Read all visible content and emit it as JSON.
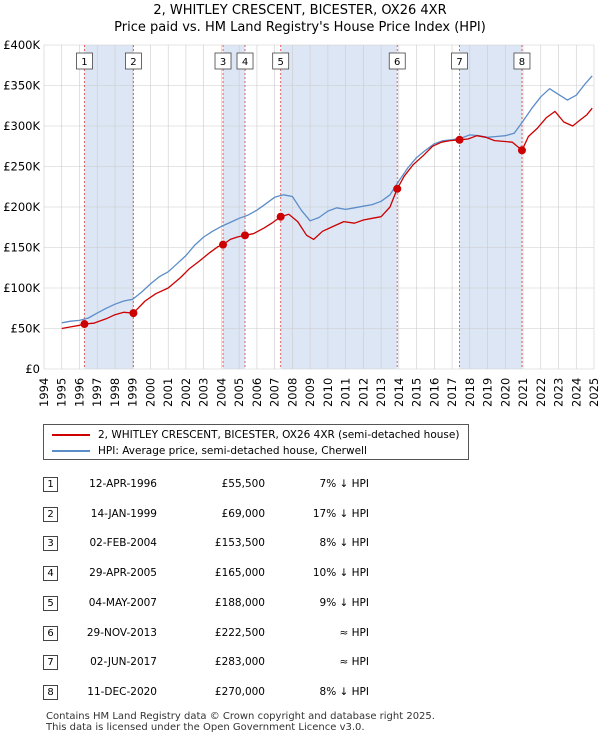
{
  "title_line1": "2, WHITLEY CRESCENT, BICESTER, OX26 4XR",
  "title_line2": "Price paid vs. HM Land Registry's House Price Index (HPI)",
  "chart_data": {
    "type": "line",
    "title": "2, WHITLEY CRESCENT, BICESTER, OX26 4XR — Price paid vs. HM Land Registry's House Price Index (HPI)",
    "xlabel": "",
    "ylabel": "",
    "xlim": [
      1994,
      2025
    ],
    "ylim": [
      0,
      400000
    ],
    "x_ticks": [
      1994,
      1995,
      1996,
      1997,
      1998,
      1999,
      2000,
      2001,
      2002,
      2003,
      2004,
      2005,
      2006,
      2007,
      2008,
      2009,
      2010,
      2011,
      2012,
      2013,
      2014,
      2015,
      2016,
      2017,
      2018,
      2019,
      2020,
      2021,
      2022,
      2023,
      2024,
      2025
    ],
    "y_ticks": [
      0,
      50000,
      100000,
      150000,
      200000,
      250000,
      300000,
      350000,
      400000
    ],
    "y_tick_labels": [
      "£0",
      "£50K",
      "£100K",
      "£150K",
      "£200K",
      "£250K",
      "£300K",
      "£350K",
      "£400K"
    ],
    "grid": true,
    "colors": {
      "property": "#cc0000",
      "hpi": "#5b8dc9",
      "shade": "#dde6f5",
      "vline": "#e06060",
      "grid": "#cccccc"
    },
    "series": [
      {
        "name": "2, WHITLEY CRESCENT, BICESTER, OX26 4XR (semi-detached house)",
        "x": [
          1995.0,
          1995.5,
          1996.0,
          1996.28,
          1996.8,
          1997.5,
          1998.0,
          1998.5,
          1999.04,
          1999.7,
          2000.3,
          2001.0,
          2001.7,
          2002.2,
          2002.8,
          2003.3,
          2003.8,
          2004.09,
          2004.5,
          2004.9,
          2005.33,
          2005.8,
          2006.4,
          2006.9,
          2007.34,
          2007.8,
          2008.3,
          2008.8,
          2009.2,
          2009.7,
          2010.3,
          2010.9,
          2011.5,
          2012.0,
          2012.5,
          2013.0,
          2013.5,
          2013.91,
          2014.3,
          2014.8,
          2015.4,
          2015.9,
          2016.4,
          2016.9,
          2017.42,
          2017.9,
          2018.4,
          2018.9,
          2019.4,
          2019.9,
          2020.4,
          2020.94,
          2021.3,
          2021.8,
          2022.3,
          2022.8,
          2023.3,
          2023.8,
          2024.2,
          2024.6,
          2024.9
        ],
        "values": [
          50000,
          52000,
          54000,
          55500,
          56500,
          62000,
          67000,
          70000,
          69000,
          84000,
          93000,
          100000,
          113000,
          124000,
          134000,
          143000,
          151000,
          153500,
          160000,
          163000,
          165000,
          167000,
          174000,
          181000,
          188000,
          191000,
          182000,
          165000,
          160000,
          170000,
          176000,
          182000,
          180000,
          184000,
          186000,
          188000,
          200000,
          222500,
          238000,
          252000,
          264000,
          275000,
          280000,
          282000,
          283000,
          284000,
          288000,
          286000,
          282000,
          281000,
          280000,
          270000,
          287000,
          297000,
          310000,
          318000,
          305000,
          300000,
          307000,
          314000,
          322000
        ]
      },
      {
        "name": "HPI: Average price, semi-detached house, Cherwell",
        "x": [
          1995.0,
          1995.5,
          1996.0,
          1996.5,
          1997.0,
          1997.5,
          1998.0,
          1998.5,
          1999.0,
          1999.5,
          2000.0,
          2000.5,
          2001.0,
          2001.5,
          2002.0,
          2002.5,
          2003.0,
          2003.5,
          2004.0,
          2004.5,
          2005.0,
          2005.5,
          2006.0,
          2006.5,
          2007.0,
          2007.5,
          2008.0,
          2008.5,
          2009.0,
          2009.5,
          2010.0,
          2010.5,
          2011.0,
          2011.5,
          2012.0,
          2012.5,
          2013.0,
          2013.5,
          2014.0,
          2014.5,
          2015.0,
          2015.5,
          2016.0,
          2016.5,
          2017.0,
          2017.5,
          2018.0,
          2018.5,
          2019.0,
          2019.5,
          2020.0,
          2020.5,
          2021.0,
          2021.5,
          2022.0,
          2022.5,
          2023.0,
          2023.5,
          2024.0,
          2024.5,
          2024.9
        ],
        "values": [
          57000,
          59000,
          60000,
          63000,
          69000,
          75000,
          80000,
          84000,
          86000,
          95000,
          105000,
          114000,
          120000,
          130000,
          140000,
          153000,
          163000,
          170000,
          176000,
          181000,
          186000,
          190000,
          196000,
          204000,
          212000,
          215000,
          213000,
          196000,
          183000,
          187000,
          195000,
          199000,
          197000,
          199000,
          201000,
          203000,
          207000,
          215000,
          232000,
          248000,
          261000,
          270000,
          278000,
          282000,
          283000,
          285000,
          289000,
          288000,
          286000,
          287000,
          288000,
          291000,
          306000,
          322000,
          336000,
          346000,
          339000,
          332000,
          338000,
          352000,
          362000
        ]
      }
    ],
    "sales": [
      {
        "num": "1",
        "x": 1996.28,
        "price": 55500
      },
      {
        "num": "2",
        "x": 1999.04,
        "price": 69000
      },
      {
        "num": "3",
        "x": 2004.09,
        "price": 153500
      },
      {
        "num": "4",
        "x": 2005.33,
        "price": 165000
      },
      {
        "num": "5",
        "x": 2007.34,
        "price": 188000
      },
      {
        "num": "6",
        "x": 2013.91,
        "price": 222500
      },
      {
        "num": "7",
        "x": 2017.42,
        "price": 283000
      },
      {
        "num": "8",
        "x": 2020.94,
        "price": 270000
      }
    ],
    "shaded_periods": [
      [
        1996.28,
        1999.04
      ],
      [
        2004.09,
        2005.33
      ],
      [
        2007.34,
        2013.91
      ],
      [
        2017.42,
        2020.94
      ]
    ]
  },
  "legend": {
    "property_label": "2, WHITLEY CRESCENT, BICESTER, OX26 4XR (semi-detached house)",
    "hpi_label": "HPI: Average price, semi-detached house, Cherwell"
  },
  "sales_table": [
    {
      "num": "1",
      "date": "12-APR-1996",
      "price": "£55,500",
      "relation": "7% ↓ HPI"
    },
    {
      "num": "2",
      "date": "14-JAN-1999",
      "price": "£69,000",
      "relation": "17% ↓ HPI"
    },
    {
      "num": "3",
      "date": "02-FEB-2004",
      "price": "£153,500",
      "relation": "8% ↓ HPI"
    },
    {
      "num": "4",
      "date": "29-APR-2005",
      "price": "£165,000",
      "relation": "10% ↓ HPI"
    },
    {
      "num": "5",
      "date": "04-MAY-2007",
      "price": "£188,000",
      "relation": "9% ↓ HPI"
    },
    {
      "num": "6",
      "date": "29-NOV-2013",
      "price": "£222,500",
      "relation": "≈ HPI"
    },
    {
      "num": "7",
      "date": "02-JUN-2017",
      "price": "£283,000",
      "relation": "≈ HPI"
    },
    {
      "num": "8",
      "date": "11-DEC-2020",
      "price": "£270,000",
      "relation": "8% ↓ HPI"
    }
  ],
  "footer": {
    "line1": "Contains HM Land Registry data © Crown copyright and database right 2025.",
    "line2": "This data is licensed under the Open Government Licence v3.0."
  }
}
